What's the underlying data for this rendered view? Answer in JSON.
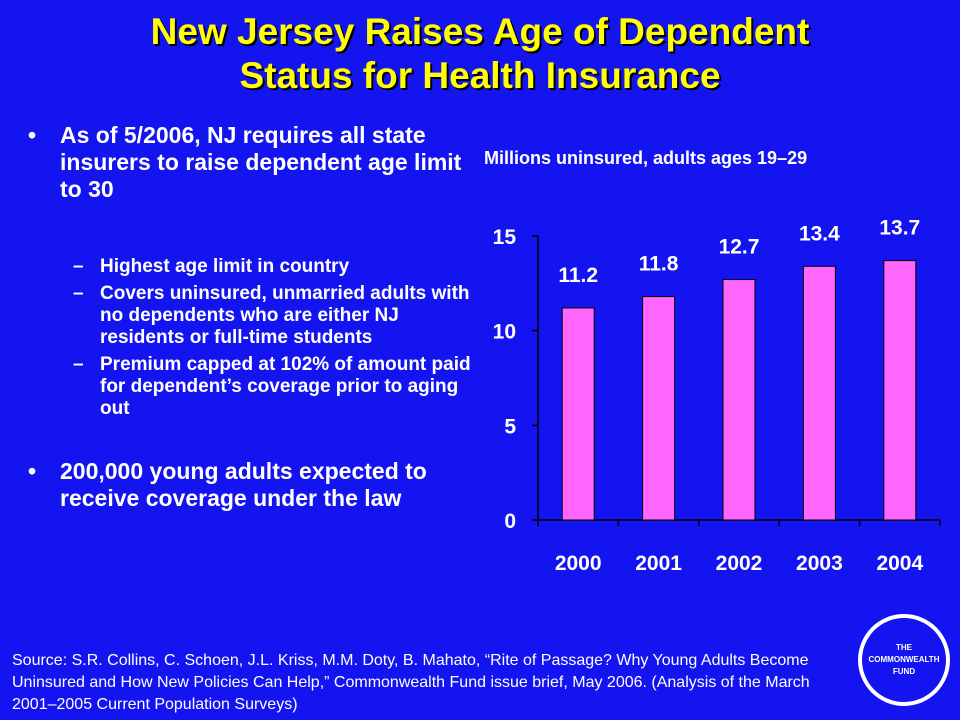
{
  "slide": {
    "title_line1": "New Jersey Raises Age of Dependent",
    "title_line2": "Status for Health Insurance"
  },
  "bullets": [
    {
      "text": "As of 5/2006, NJ requires all state insurers to raise dependent age limit to 30",
      "subitems": [
        "Highest age limit in country",
        "Covers uninsured, unmarried adults with no dependents who are either NJ residents or full-time students",
        "Premium capped at 102% of amount paid for dependent’s coverage prior to aging out"
      ]
    },
    {
      "text": "200,000 young adults expected to receive coverage under the law",
      "subitems": []
    }
  ],
  "bullet_symbol": "•",
  "dash_symbol": "–",
  "chart_caption": "Millions uninsured, adults ages 19–29",
  "chart_data": {
    "type": "bar",
    "categories": [
      "2000",
      "2001",
      "2002",
      "2003",
      "2004"
    ],
    "values": [
      11.2,
      11.8,
      12.7,
      13.4,
      13.7
    ],
    "data_labels": [
      "11.2",
      "11.8",
      "12.7",
      "13.4",
      "13.7"
    ],
    "ylim": [
      0,
      15
    ],
    "yticks": [
      0,
      5,
      10,
      15
    ],
    "ytick_labels": [
      "0",
      "5",
      "10",
      "15"
    ],
    "bar_color": "#ff66ff",
    "grid": false,
    "legend": false
  },
  "source": "Source: S.R. Collins, C. Schoen, J.L. Kriss, M.M. Doty, B. Mahato, “Rite of Passage? Why Young Adults Become Uninsured and How New Policies Can Help,” Commonwealth Fund issue brief, May 2006. (Analysis of the March 2001–2005 Current Population Surveys)",
  "logo": {
    "line1": "THE",
    "line2": "COMMONWEALTH",
    "line3": "FUND"
  },
  "colors": {
    "background": "#1414f0",
    "title": "#ffff00",
    "text": "#ffffff"
  }
}
